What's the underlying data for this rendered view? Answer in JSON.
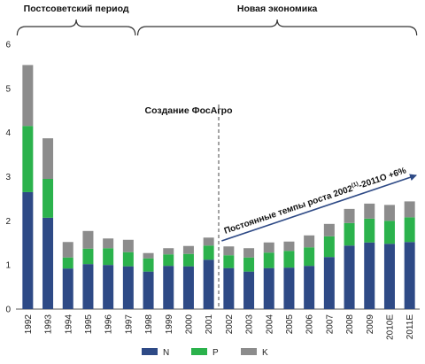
{
  "chart_data": {
    "type": "bar",
    "stacked": true,
    "categories": [
      "1992",
      "1993",
      "1994",
      "1995",
      "1996",
      "1997",
      "1998",
      "1999",
      "2000",
      "2001",
      "2002",
      "2003",
      "2004",
      "2005",
      "2006",
      "2007",
      "2008",
      "2009",
      "2010E",
      "2011E"
    ],
    "series": [
      {
        "name": "N",
        "color": "#2E4A86",
        "values": [
          2.65,
          2.07,
          0.92,
          1.02,
          1.0,
          0.97,
          0.85,
          0.98,
          0.97,
          1.12,
          0.93,
          0.85,
          0.93,
          0.94,
          0.98,
          1.18,
          1.44,
          1.51,
          1.48,
          1.52
        ]
      },
      {
        "name": "P",
        "color": "#2BB24C",
        "values": [
          1.5,
          0.88,
          0.25,
          0.35,
          0.38,
          0.32,
          0.3,
          0.26,
          0.28,
          0.32,
          0.29,
          0.32,
          0.35,
          0.38,
          0.42,
          0.47,
          0.51,
          0.54,
          0.52,
          0.56
        ]
      },
      {
        "name": "K",
        "color": "#8C8C8C",
        "values": [
          1.38,
          0.92,
          0.35,
          0.4,
          0.22,
          0.28,
          0.12,
          0.14,
          0.18,
          0.18,
          0.2,
          0.21,
          0.23,
          0.21,
          0.27,
          0.28,
          0.32,
          0.34,
          0.36,
          0.36
        ]
      }
    ],
    "ylim": [
      0,
      6
    ],
    "yticks": [
      0,
      1,
      2,
      3,
      4,
      5,
      6
    ],
    "grid": false,
    "legend_position": "bottom",
    "periods": [
      {
        "label": "Постсоветский период",
        "from": "1992",
        "to": "1997"
      },
      {
        "label": "Новая экономика",
        "from": "1998",
        "to": "2011E"
      }
    ],
    "annotations": {
      "divider_label": "Создание ФосАгро",
      "divider_between": [
        "2001",
        "2002"
      ],
      "trend_label_main": "Постоянные темпы роста 2002",
      "trend_label_sup": "(1)",
      "trend_label_tail": "-2011О  +6%"
    }
  }
}
